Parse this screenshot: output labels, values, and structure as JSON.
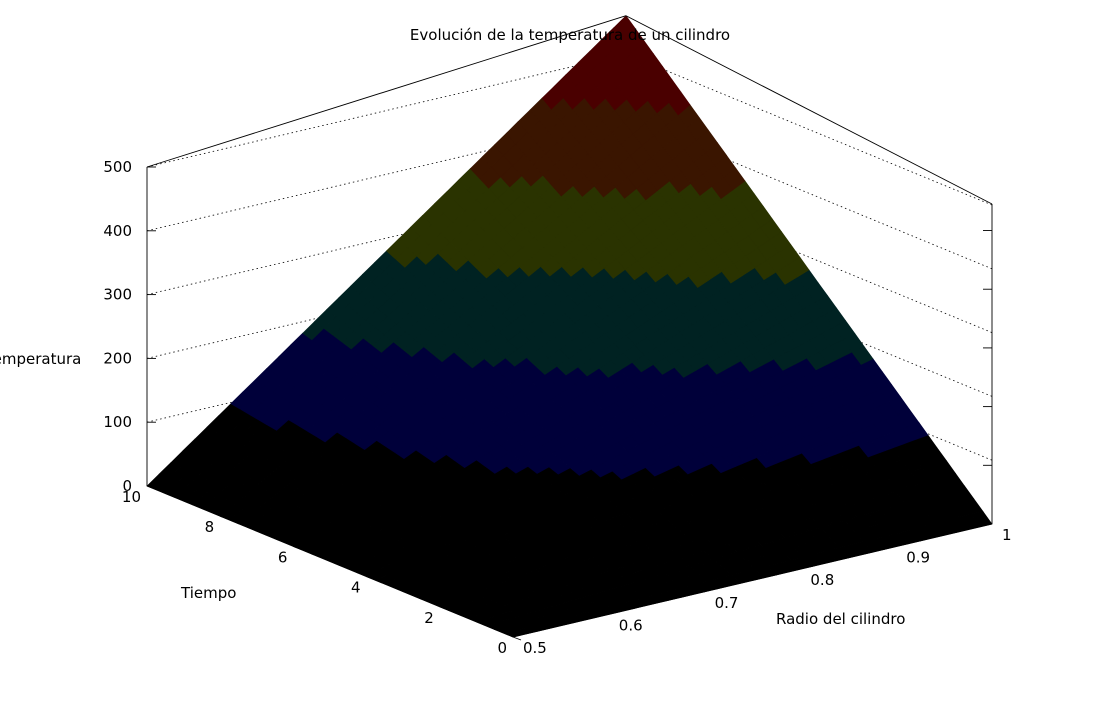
{
  "chart_data": {
    "type": "surface",
    "title": "Evolución de la temperatura de un cilindro",
    "xlabel": "Tiempo",
    "ylabel": "Radio del cilindro",
    "zlabel": "Temperatura",
    "x_ticks": [
      "0",
      "2",
      "4",
      "6",
      "8",
      "10"
    ],
    "y_ticks": [
      "0.5",
      "0.6",
      "0.7",
      "0.8",
      "0.9",
      "1"
    ],
    "z_ticks": [
      "0",
      "100",
      "200",
      "300",
      "400",
      "500"
    ],
    "xlim": [
      0,
      10
    ],
    "ylim": [
      0.5,
      1
    ],
    "zlim": [
      0,
      500
    ],
    "corner_values": [
      {
        "tiempo": 0,
        "radio": 0.5,
        "temperatura": 0
      },
      {
        "tiempo": 10,
        "radio": 0.5,
        "temperatura": 0
      },
      {
        "tiempo": 0,
        "radio": 1,
        "temperatura": 0
      },
      {
        "tiempo": 10,
        "radio": 1,
        "temperatura": 560
      }
    ],
    "grid": true,
    "colors": [
      "#000000",
      "#00003a",
      "#002222",
      "#2a3300",
      "#3a1500",
      "#4a0000"
    ]
  }
}
